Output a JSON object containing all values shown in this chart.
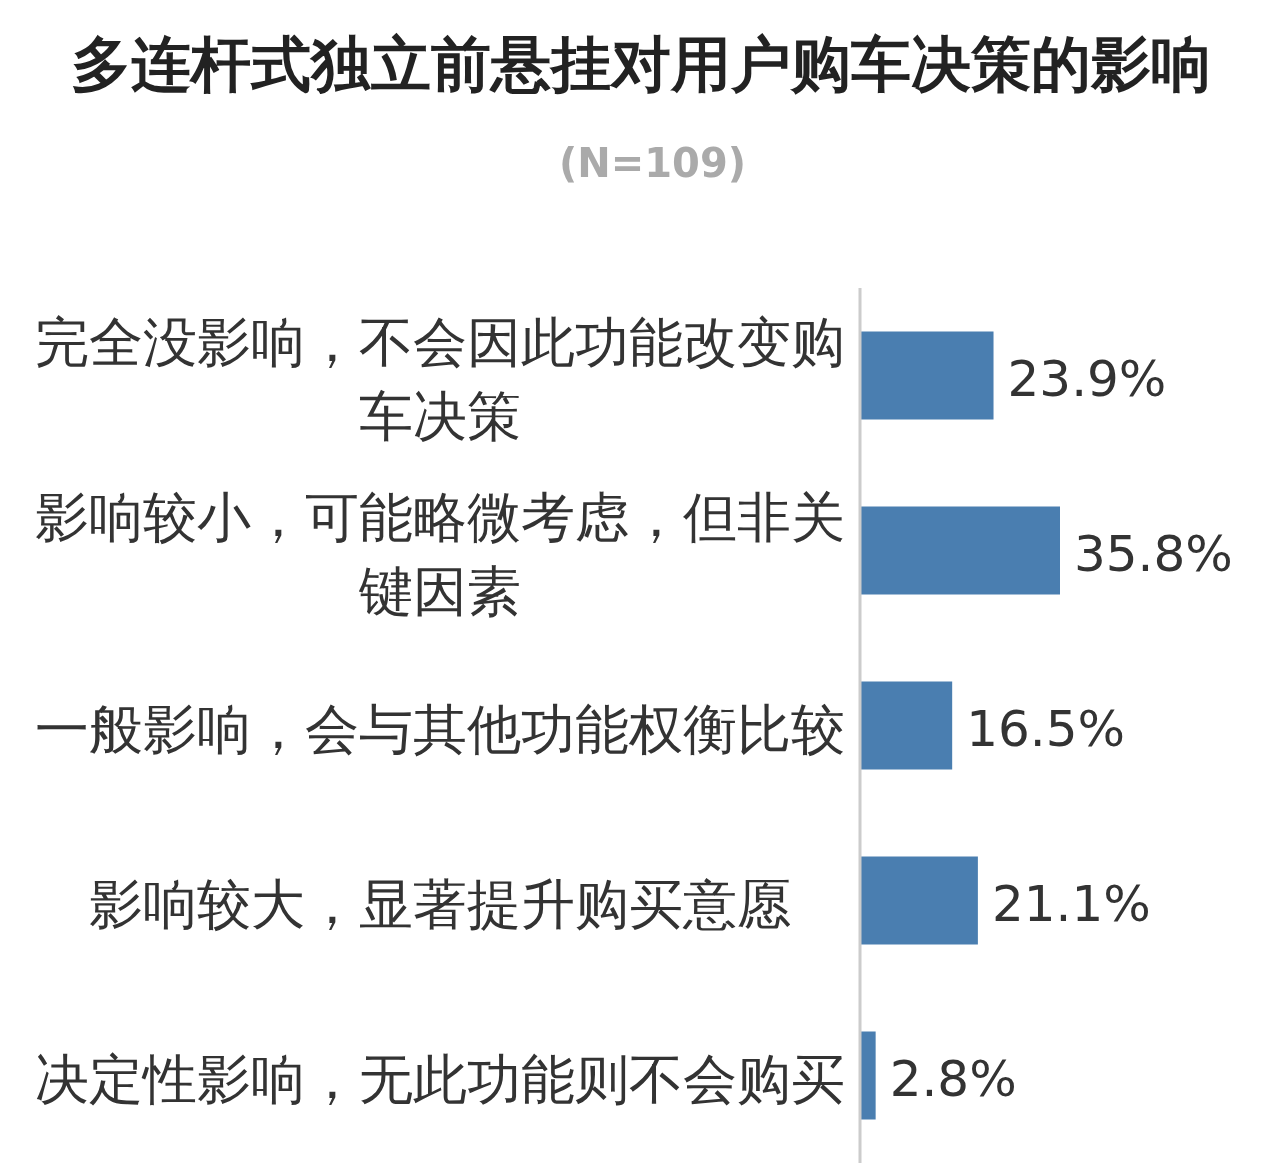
{
  "chart_data": {
    "type": "bar",
    "orientation": "horizontal",
    "title": "多连杆式独立前悬挂对用户购车决策的影响",
    "subtitle": "(N=109)",
    "categories": [
      "完全没影响，不会因此功能改变购车决策",
      "影响较小，可能略微考虑，但非关键因素",
      "一般影响，会与其他功能权衡比较",
      "影响较大，显著提升购买意愿",
      "决定性影响，无此功能则不会购买"
    ],
    "values": [
      23.9,
      35.8,
      16.5,
      21.1,
      2.8
    ],
    "color": "#4a7eb0",
    "value_labels": [
      "23.9%",
      "35.8%",
      "16.5%",
      "21.1%",
      "2.8%"
    ]
  }
}
